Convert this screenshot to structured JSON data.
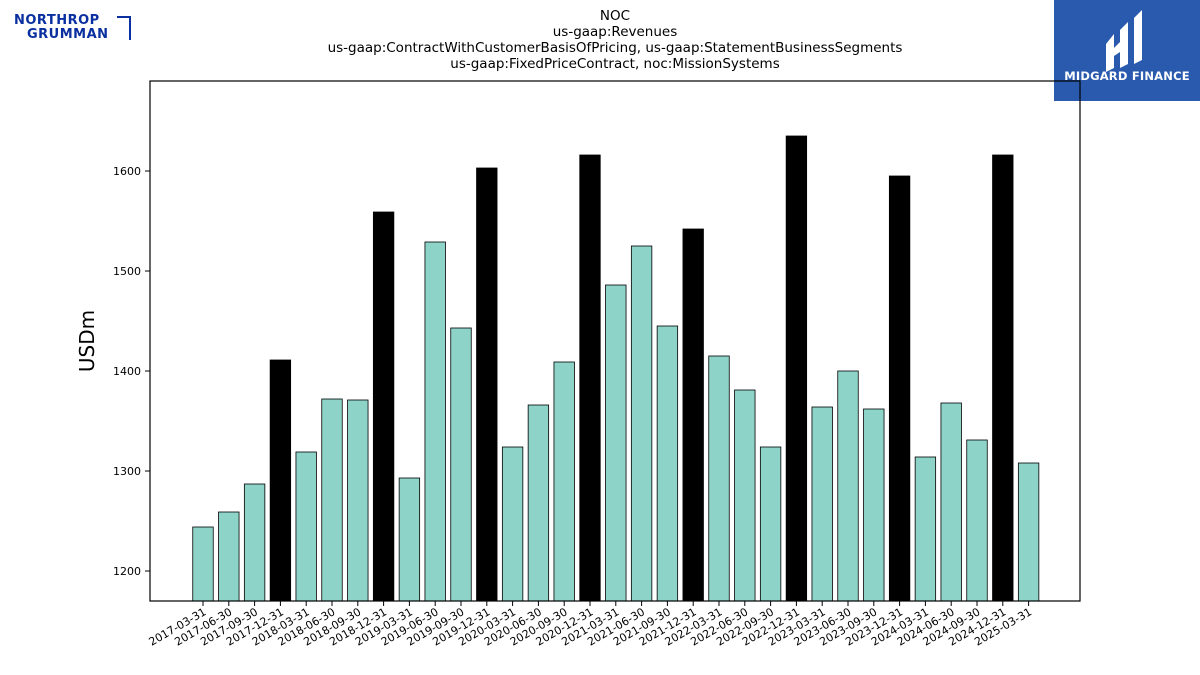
{
  "logos": {
    "left": {
      "line1": "NORTHROP",
      "line2": "GRUMMAN",
      "color": "#0a2fa0"
    },
    "right": {
      "text": "MIDGARD FINANCE",
      "bg": "#2a5aae",
      "fg": "#ffffff"
    }
  },
  "chart_data": {
    "type": "bar",
    "title_lines": [
      "NOC",
      "us-gaap:Revenues",
      "us-gaap:ContractWithCustomerBasisOfPricing, us-gaap:StatementBusinessSegments",
      "us-gaap:FixedPriceContract, noc:MissionSystems"
    ],
    "xlabel": "",
    "ylabel": "USDm",
    "ylim": [
      1170,
      1690
    ],
    "yticks": [
      1200,
      1300,
      1400,
      1500,
      1600
    ],
    "grid": false,
    "colors": {
      "quarter": "#8dd3c7",
      "annual": "#000000",
      "edge": "#000000"
    },
    "categories": [
      "2017-03-31",
      "2017-06-30",
      "2017-09-30",
      "2017-12-31",
      "2018-03-31",
      "2018-06-30",
      "2018-09-30",
      "2018-12-31",
      "2019-03-31",
      "2019-06-30",
      "2019-09-30",
      "2019-12-31",
      "2020-03-31",
      "2020-06-30",
      "2020-09-30",
      "2020-12-31",
      "2021-03-31",
      "2021-06-30",
      "2021-09-30",
      "2021-12-31",
      "2022-03-31",
      "2022-06-30",
      "2022-09-30",
      "2022-12-31",
      "2023-03-31",
      "2023-06-30",
      "2023-09-30",
      "2023-12-31",
      "2024-03-31",
      "2024-06-30",
      "2024-09-30",
      "2024-12-31",
      "2025-03-31"
    ],
    "values": [
      1244,
      1259,
      1287,
      1411,
      1319,
      1372,
      1371,
      1559,
      1293,
      1529,
      1443,
      1603,
      1324,
      1366,
      1409,
      1616,
      1486,
      1525,
      1445,
      1542,
      1415,
      1381,
      1324,
      1635,
      1364,
      1400,
      1362,
      1595,
      1314,
      1368,
      1331,
      1616,
      1308
    ]
  }
}
